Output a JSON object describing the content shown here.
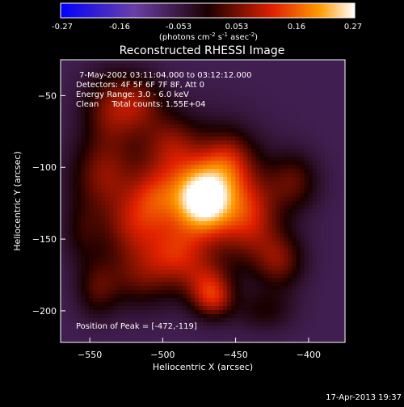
{
  "colorbar": {
    "ticks": [
      "-0.27",
      "-0.16",
      "-0.053",
      "0.053",
      "0.16",
      "0.27"
    ],
    "unit_label": "(photons cm",
    "unit_exp1": "-2",
    "unit_mid": " s",
    "unit_exp2": "-1",
    "unit_mid2": " asec",
    "unit_exp3": "-2",
    "unit_end": ")"
  },
  "chart_data": {
    "type": "heatmap",
    "title": "Reconstructed RHESSI Image",
    "xlabel": "Heliocentric X (arcsec)",
    "ylabel": "Heliocentric Y (arcsec)",
    "xlim": [
      -570,
      -375
    ],
    "ylim": [
      -222,
      -25
    ],
    "x_ticks": [
      -550,
      -500,
      -450,
      -400
    ],
    "y_ticks": [
      -50,
      -100,
      -150,
      -200
    ],
    "colorscale_range": [
      -0.27,
      0.27
    ],
    "peak": [
      -472,
      -119
    ],
    "annotations": [
      "7-May-2002 03:11:04.000 to 03:12:12.000",
      "Detectors: 4F 5F 6F 7F 8F, Att 0",
      "Energy Range: 3.0 - 6.0 keV",
      "Clean     Total counts: 1.55E+04"
    ],
    "peak_label": "Position of Peak = [-472,-119]",
    "blobs": [
      {
        "x": -472,
        "y": -122,
        "sx": 14,
        "sy": 16,
        "a": 0.27
      },
      {
        "x": -470,
        "y": -120,
        "sx": 28,
        "sy": 30,
        "a": 0.12
      },
      {
        "x": -535,
        "y": -60,
        "sx": 14,
        "sy": 18,
        "a": 0.12
      },
      {
        "x": -515,
        "y": -55,
        "sx": 12,
        "sy": 14,
        "a": 0.09
      },
      {
        "x": -495,
        "y": -85,
        "sx": 14,
        "sy": 16,
        "a": 0.1
      },
      {
        "x": -540,
        "y": -105,
        "sx": 16,
        "sy": 18,
        "a": 0.12
      },
      {
        "x": -520,
        "y": -140,
        "sx": 16,
        "sy": 16,
        "a": 0.12
      },
      {
        "x": -515,
        "y": -175,
        "sx": 18,
        "sy": 16,
        "a": 0.1
      },
      {
        "x": -490,
        "y": -160,
        "sx": 14,
        "sy": 14,
        "a": 0.11
      },
      {
        "x": -470,
        "y": -180,
        "sx": 12,
        "sy": 12,
        "a": 0.1
      },
      {
        "x": -465,
        "y": -192,
        "sx": 10,
        "sy": 10,
        "a": 0.12
      },
      {
        "x": -440,
        "y": -135,
        "sx": 14,
        "sy": 20,
        "a": 0.12
      },
      {
        "x": -420,
        "y": -165,
        "sx": 12,
        "sy": 14,
        "a": 0.11
      },
      {
        "x": -410,
        "y": -110,
        "sx": 12,
        "sy": 14,
        "a": 0.09
      },
      {
        "x": -455,
        "y": -95,
        "sx": 12,
        "sy": 14,
        "a": 0.1
      },
      {
        "x": -545,
        "y": -185,
        "sx": 10,
        "sy": 14,
        "a": 0.08
      },
      {
        "x": -430,
        "y": -200,
        "sx": 14,
        "sy": 10,
        "a": 0.06
      },
      {
        "x": -505,
        "y": -120,
        "sx": 12,
        "sy": 14,
        "a": 0.1
      },
      {
        "x": -555,
        "y": -145,
        "sx": 10,
        "sy": 16,
        "a": 0.06
      }
    ],
    "background": -0.065
  },
  "timestamp": "17-Apr-2013 19:37"
}
